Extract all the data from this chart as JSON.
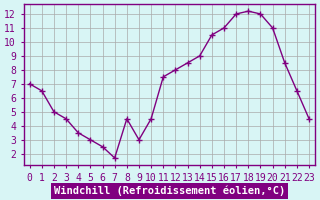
{
  "x": [
    0,
    1,
    2,
    3,
    4,
    5,
    6,
    7,
    8,
    9,
    10,
    11,
    12,
    13,
    14,
    15,
    16,
    17,
    18,
    19,
    20,
    21,
    22,
    23
  ],
  "y": [
    7.0,
    6.5,
    5.0,
    4.5,
    3.5,
    3.0,
    2.5,
    1.7,
    4.5,
    3.0,
    4.5,
    7.5,
    8.0,
    8.5,
    9.0,
    10.5,
    11.0,
    12.0,
    12.2,
    12.0,
    11.0,
    8.5,
    6.5,
    4.5
  ],
  "line_color": "#800080",
  "marker": "+",
  "marker_color": "#800080",
  "bg_color": "#d8f5f5",
  "grid_color": "#aaaaaa",
  "xlabel": "Windchill (Refroidissement éolien,°C)",
  "xlabel_color": "#ffffff",
  "xlabel_bg": "#800080",
  "ylabel_ticks": [
    2,
    3,
    4,
    5,
    6,
    7,
    8,
    9,
    10,
    11,
    12
  ],
  "xlim": [
    -0.5,
    23.5
  ],
  "ylim": [
    1.2,
    12.7
  ],
  "xtick_labels": [
    "0",
    "1",
    "2",
    "3",
    "4",
    "5",
    "6",
    "7",
    "8",
    "9",
    "10",
    "11",
    "12",
    "13",
    "14",
    "15",
    "16",
    "17",
    "18",
    "19",
    "20",
    "21",
    "22",
    "23"
  ],
  "title_color": "#800080",
  "axis_color": "#800080",
  "tick_color": "#800080",
  "font_size_label": 7.5,
  "font_size_tick": 7,
  "line_width": 1.0,
  "marker_size": 5
}
